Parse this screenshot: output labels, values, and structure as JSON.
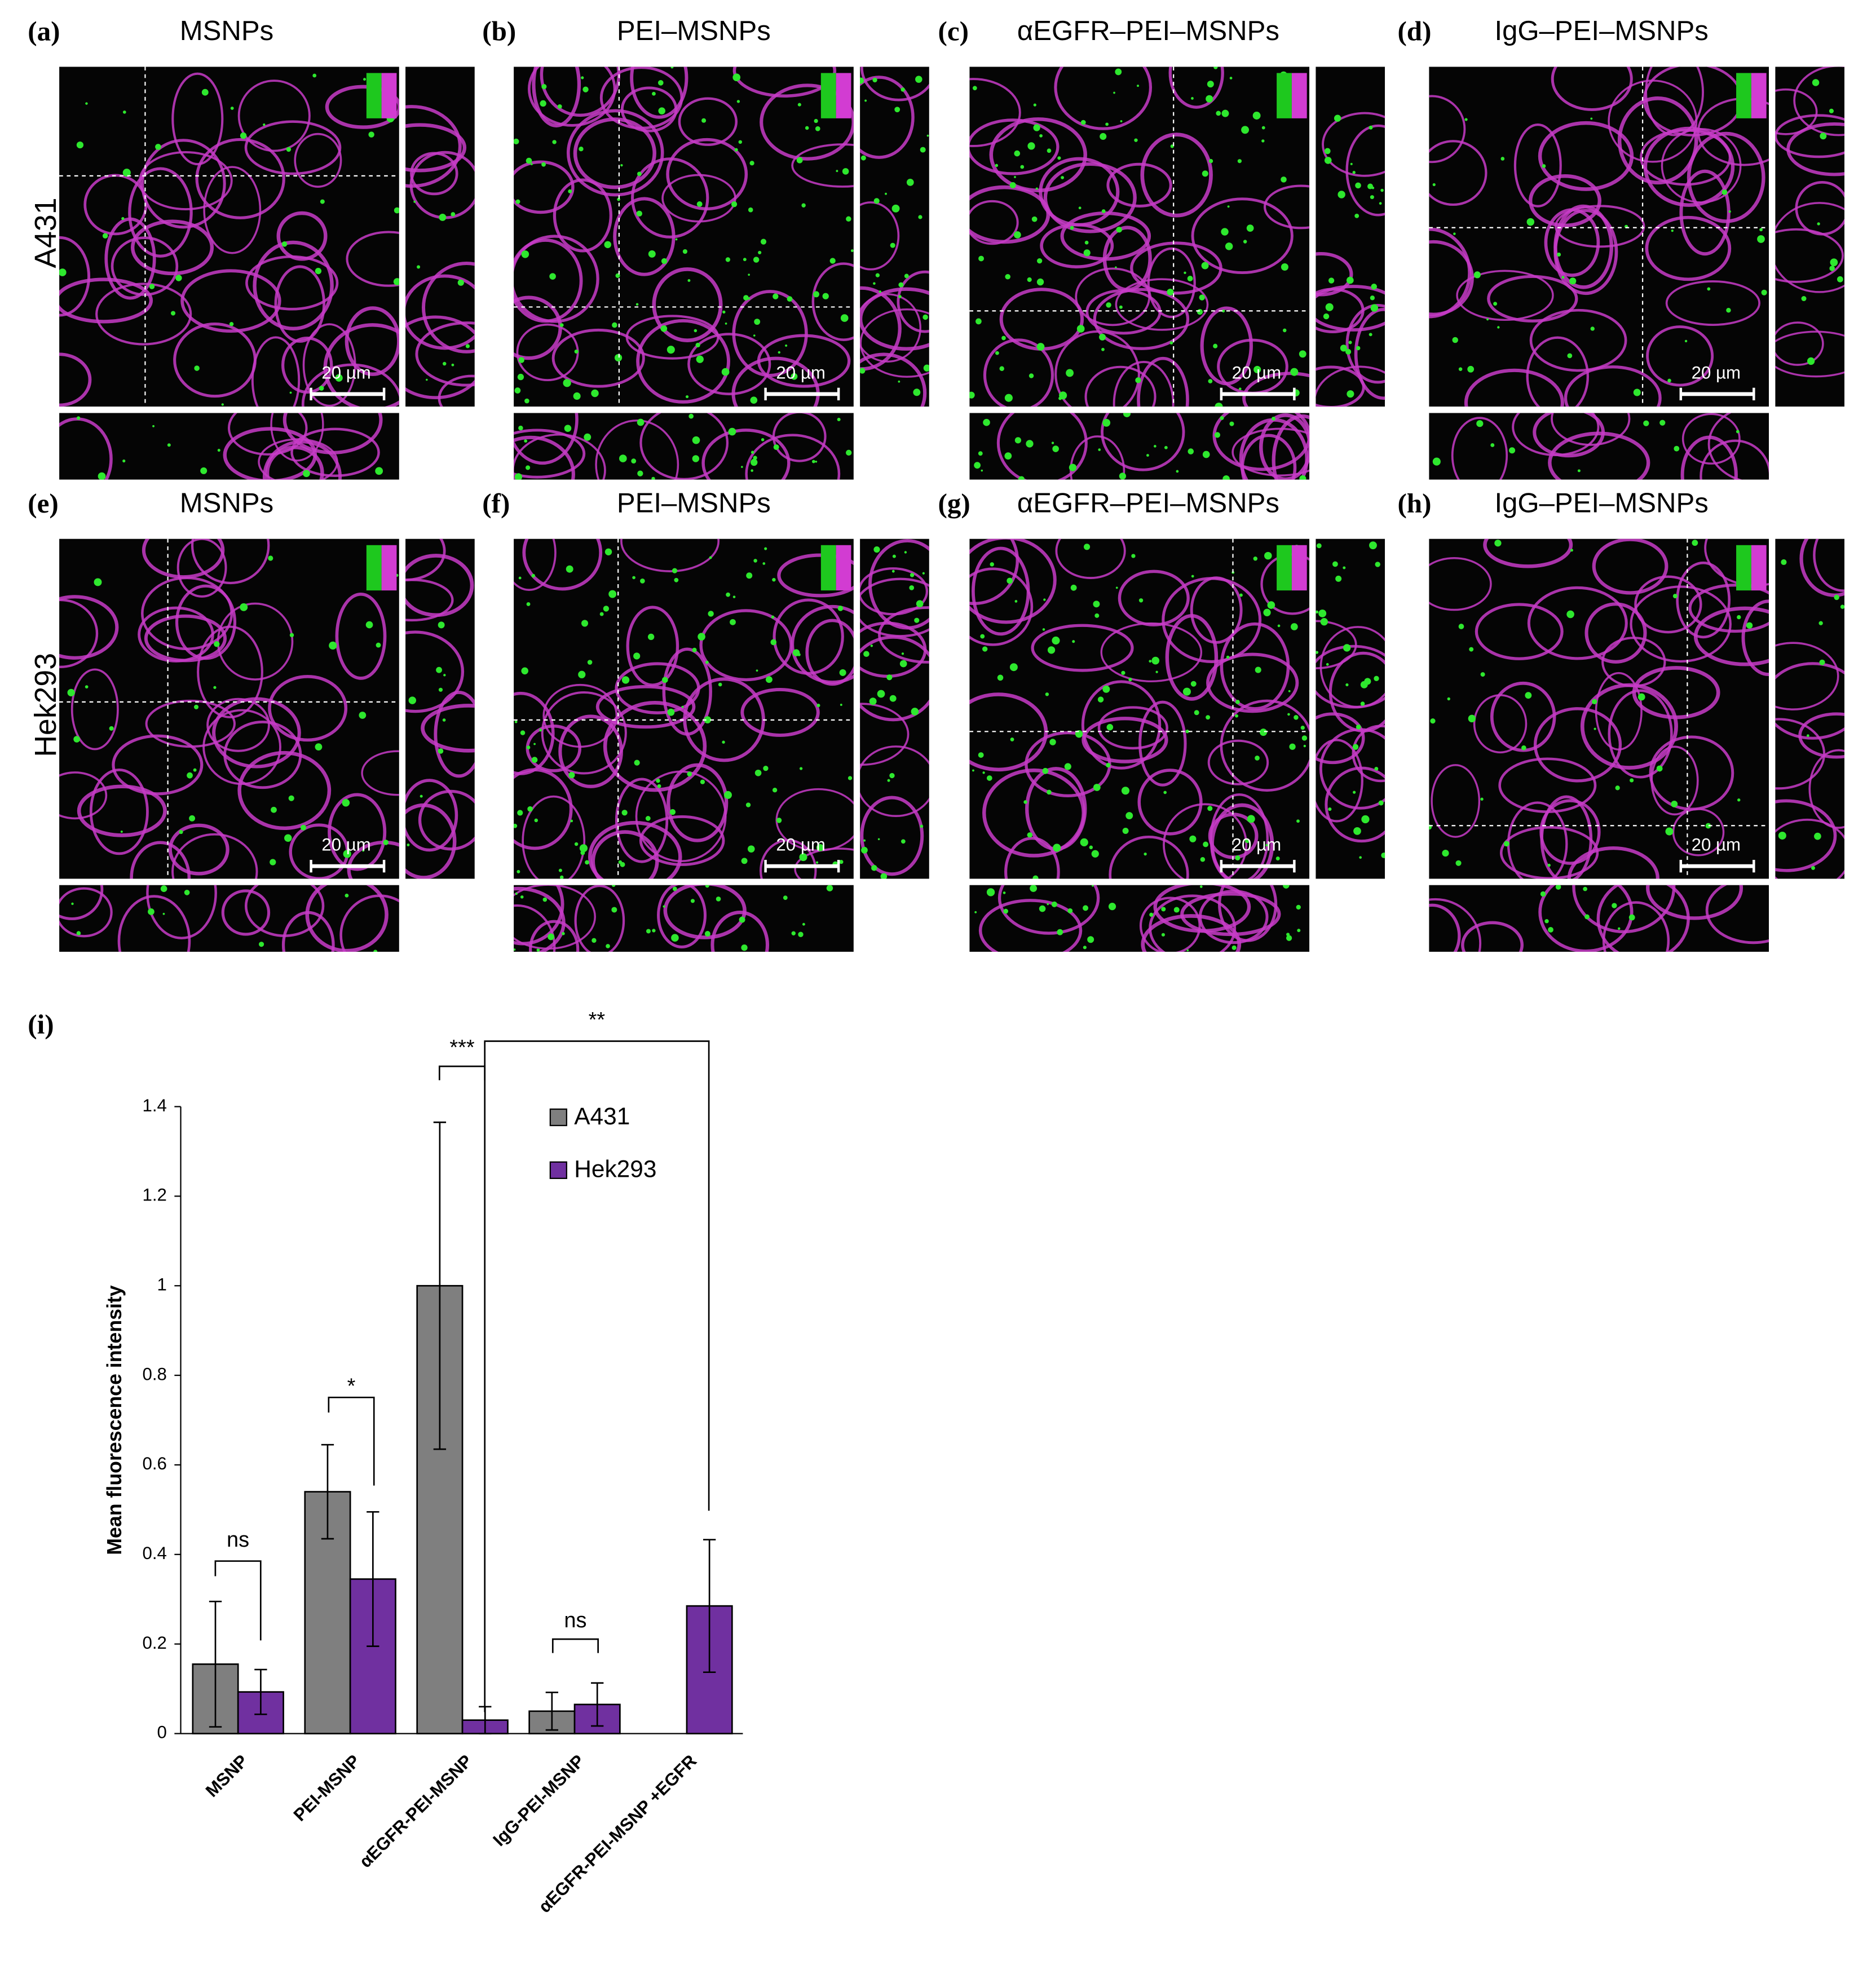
{
  "row_labels": [
    "A431",
    "Hek293"
  ],
  "panels": [
    {
      "label": "(a)",
      "title": "MSNPs",
      "scale": "20 µm"
    },
    {
      "label": "(b)",
      "title": "PEI–MSNPs",
      "scale": "20 µm"
    },
    {
      "label": "(c)",
      "title": "αEGFR–PEI–MSNPs",
      "scale": "20 µm"
    },
    {
      "label": "(d)",
      "title": "IgG–PEI–MSNPs",
      "scale": "20 µm"
    },
    {
      "label": "(e)",
      "title": "MSNPs",
      "scale": "20 µm"
    },
    {
      "label": "(f)",
      "title": "PEI–MSNPs",
      "scale": "20 µm"
    },
    {
      "label": "(g)",
      "title": "αEGFR–PEI–MSNPs",
      "scale": "20 µm"
    },
    {
      "label": "(h)",
      "title": "IgG–PEI–MSNPs",
      "scale": "20 µm"
    }
  ],
  "chart_data": {
    "type": "bar",
    "panel_label": "(i)",
    "y_label": "Mean fluorescence intensity",
    "categories": [
      "MSNP",
      "PEI-MSNP",
      "αEGFR-PEI-MSNP",
      "IgG-PEI-MSNP",
      "αEGFR-PEI-MSNP +EGFR"
    ],
    "series": [
      {
        "name": "A431",
        "color": "#7f7f7f",
        "values": [
          0.155,
          0.54,
          1.0,
          0.05,
          null
        ],
        "errors": [
          0.14,
          0.105,
          0.365,
          0.042,
          null
        ]
      },
      {
        "name": "Hek293",
        "color": "#7030a0",
        "values": [
          0.093,
          0.345,
          0.03,
          0.065,
          0.285
        ],
        "errors": [
          0.05,
          0.15,
          0.03,
          0.048,
          0.148
        ]
      }
    ],
    "ylim": [
      0,
      1.4
    ],
    "yticks": [
      0,
      0.2,
      0.4,
      0.6,
      0.8,
      1,
      1.2,
      1.4
    ],
    "legend": "upper right",
    "annotations": [
      "ns",
      "*",
      "***",
      "ns",
      "**"
    ]
  }
}
